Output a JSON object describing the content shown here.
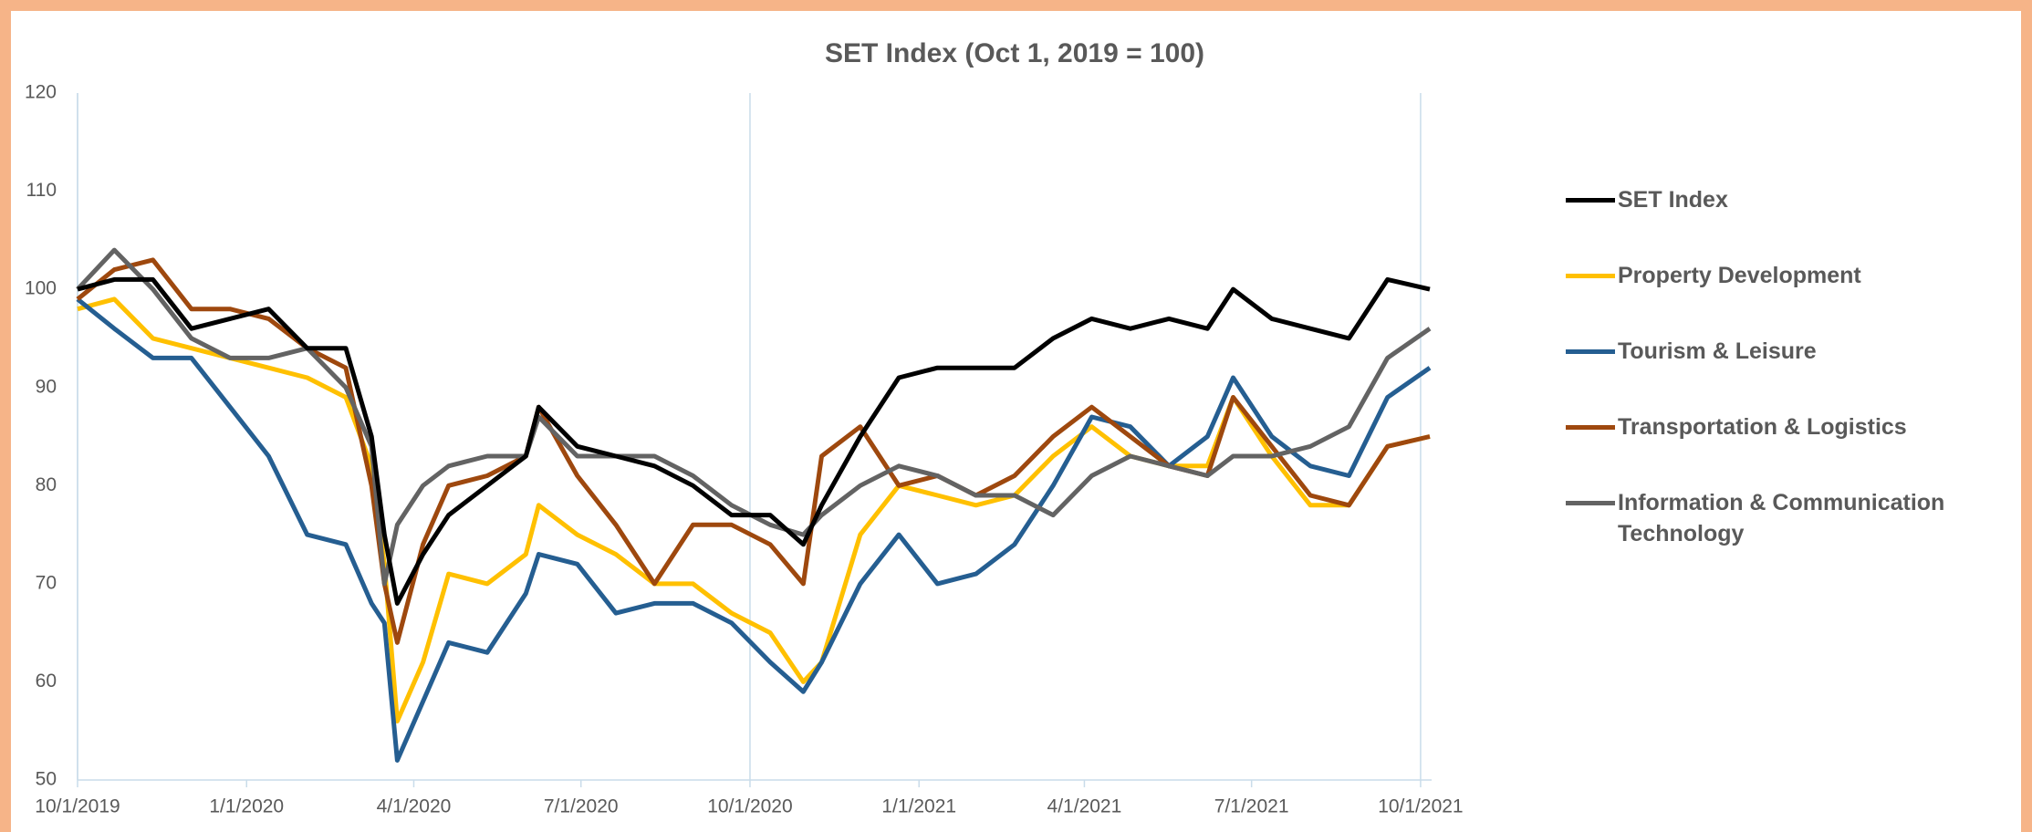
{
  "chart_data": {
    "type": "line",
    "title": "SET Index (Oct 1, 2019 = 100)",
    "x": [
      "2019-10-01",
      "2019-10-21",
      "2019-11-11",
      "2019-12-02",
      "2019-12-23",
      "2020-01-13",
      "2020-02-03",
      "2020-02-24",
      "2020-03-09",
      "2020-03-16",
      "2020-03-23",
      "2020-04-06",
      "2020-04-20",
      "2020-05-11",
      "2020-06-01",
      "2020-06-08",
      "2020-06-29",
      "2020-07-20",
      "2020-08-10",
      "2020-08-31",
      "2020-09-21",
      "2020-10-12",
      "2020-10-30",
      "2020-11-09",
      "2020-11-30",
      "2020-12-21",
      "2021-01-11",
      "2021-02-01",
      "2021-02-22",
      "2021-03-15",
      "2021-04-05",
      "2021-04-26",
      "2021-05-17",
      "2021-06-07",
      "2021-06-21",
      "2021-07-12",
      "2021-08-02",
      "2021-08-23",
      "2021-09-13",
      "2021-10-06"
    ],
    "series": [
      {
        "name": "SET Index",
        "color": "#000000",
        "values": [
          100,
          101,
          101,
          96,
          97,
          98,
          94,
          94,
          85,
          75,
          68,
          73,
          77,
          80,
          83,
          88,
          84,
          83,
          82,
          80,
          77,
          77,
          74,
          78,
          85,
          91,
          92,
          92,
          92,
          95,
          97,
          96,
          97,
          96,
          100,
          97,
          96,
          95,
          101,
          100
        ]
      },
      {
        "name": "Property Development",
        "color": "#ffc000",
        "values": [
          98,
          99,
          95,
          94,
          93,
          92,
          91,
          89,
          82,
          72,
          56,
          62,
          71,
          70,
          73,
          78,
          75,
          73,
          70,
          70,
          67,
          65,
          60,
          62,
          75,
          80,
          79,
          78,
          79,
          83,
          86,
          83,
          82,
          82,
          89,
          83,
          78,
          78,
          84,
          85
        ]
      },
      {
        "name": "Tourism & Leisure",
        "color": "#255e91",
        "values": [
          99,
          96,
          93,
          93,
          88,
          83,
          75,
          74,
          68,
          66,
          52,
          58,
          64,
          63,
          69,
          73,
          72,
          67,
          68,
          68,
          66,
          62,
          59,
          62,
          70,
          75,
          70,
          71,
          74,
          80,
          87,
          86,
          82,
          85,
          91,
          85,
          82,
          81,
          89,
          92
        ]
      },
      {
        "name": "Transportation & Logistics",
        "color": "#9e480e",
        "values": [
          99,
          102,
          103,
          98,
          98,
          97,
          94,
          92,
          80,
          70,
          64,
          74,
          80,
          81,
          83,
          88,
          81,
          76,
          70,
          76,
          76,
          74,
          70,
          83,
          86,
          80,
          81,
          79,
          81,
          85,
          88,
          85,
          82,
          81,
          89,
          84,
          79,
          78,
          84,
          85
        ]
      },
      {
        "name": "Information & Communication Technology",
        "color": "#636363",
        "values": [
          100,
          104,
          100,
          95,
          93,
          93,
          94,
          90,
          84,
          70,
          76,
          80,
          82,
          83,
          83,
          87,
          83,
          83,
          83,
          81,
          78,
          76,
          75,
          77,
          80,
          82,
          81,
          79,
          79,
          77,
          81,
          83,
          82,
          81,
          83,
          83,
          84,
          86,
          93,
          96
        ]
      }
    ],
    "xlim": [
      "2019-10-01",
      "2021-10-07"
    ],
    "xticks": [
      {
        "value": "2019-10-01",
        "label": "10/1/2019"
      },
      {
        "value": "2020-01-01",
        "label": "1/1/2020"
      },
      {
        "value": "2020-04-01",
        "label": "4/1/2020"
      },
      {
        "value": "2020-07-01",
        "label": "7/1/2020"
      },
      {
        "value": "2020-10-01",
        "label": "10/1/2020"
      },
      {
        "value": "2021-01-01",
        "label": "1/1/2021"
      },
      {
        "value": "2021-04-01",
        "label": "4/1/2021"
      },
      {
        "value": "2021-07-01",
        "label": "7/1/2021"
      },
      {
        "value": "2021-10-01",
        "label": "10/1/2021"
      }
    ],
    "x_gridlines": [
      "2019-10-01",
      "2020-10-01",
      "2021-10-01"
    ],
    "ylim": [
      50,
      120
    ],
    "yticks": [
      50,
      60,
      70,
      80,
      90,
      100,
      110,
      120
    ],
    "legend": "right"
  }
}
